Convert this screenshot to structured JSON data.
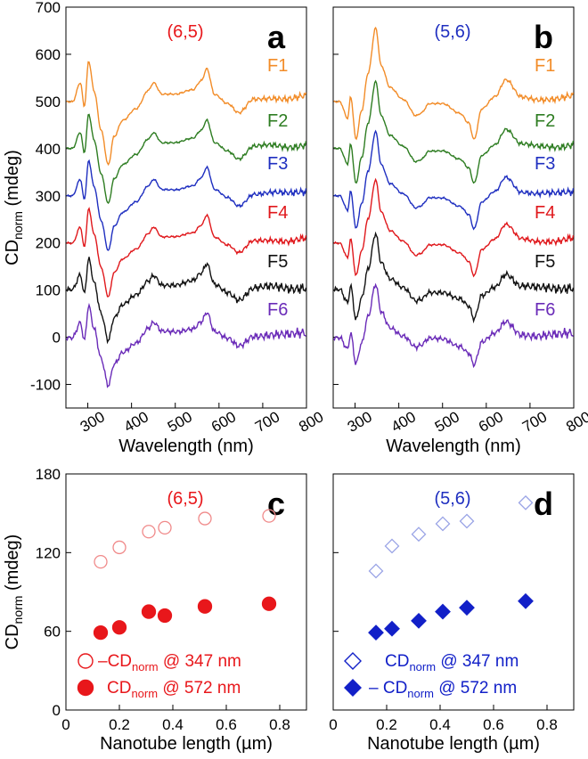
{
  "chart_data": [
    {
      "panel_letter": "a",
      "type": "line",
      "chirality": "(6,5)",
      "chirality_color": "#e8171b",
      "xlabel": "Wavelength (nm)",
      "ylabel_main": "CD",
      "ylabel_sub": "norm",
      "ylabel_unit": " (mdeg)",
      "xlim": [
        250,
        800
      ],
      "ylim": [
        -150,
        700
      ],
      "xticks": [
        300,
        400,
        500,
        600,
        700,
        800
      ],
      "yticks": [
        -100,
        0,
        100,
        200,
        300,
        400,
        500,
        600,
        700
      ],
      "series": [
        {
          "name": "F1",
          "color": "#f28c28",
          "offset": 500
        },
        {
          "name": "F2",
          "color": "#2e7d22",
          "offset": 400
        },
        {
          "name": "F3",
          "color": "#1f2fc0",
          "offset": 300
        },
        {
          "name": "F4",
          "color": "#e0181c",
          "offset": 200
        },
        {
          "name": "F5",
          "color": "#111111",
          "offset": 100
        },
        {
          "name": "F6",
          "color": "#6a2bb8",
          "offset": 0
        }
      ],
      "features": [
        [
          265,
          0
        ],
        [
          283,
          40
        ],
        [
          292,
          -10
        ],
        [
          302,
          85
        ],
        [
          315,
          20
        ],
        [
          330,
          -60
        ],
        [
          347,
          -135
        ],
        [
          360,
          -75
        ],
        [
          380,
          -40
        ],
        [
          410,
          -15
        ],
        [
          440,
          25
        ],
        [
          450,
          40
        ],
        [
          470,
          15
        ],
        [
          500,
          15
        ],
        [
          540,
          25
        ],
        [
          560,
          45
        ],
        [
          572,
          70
        ],
        [
          590,
          15
        ],
        [
          620,
          -5
        ],
        [
          645,
          -25
        ],
        [
          680,
          5
        ],
        [
          720,
          8
        ],
        [
          760,
          5
        ],
        [
          800,
          10
        ]
      ],
      "amplitude": [
        1.0,
        0.86,
        0.86,
        0.85,
        0.78,
        0.76
      ]
    },
    {
      "panel_letter": "b",
      "type": "line",
      "chirality": "(5,6)",
      "chirality_color": "#1f2fc0",
      "xlabel": "Wavelength (nm)",
      "xlim": [
        250,
        800
      ],
      "ylim": [
        -150,
        700
      ],
      "xticks": [
        300,
        400,
        500,
        600,
        700,
        800
      ],
      "series": [
        {
          "name": "F1",
          "color": "#f28c28",
          "offset": 500
        },
        {
          "name": "F2",
          "color": "#2e7d22",
          "offset": 400
        },
        {
          "name": "F3",
          "color": "#1f2fc0",
          "offset": 300
        },
        {
          "name": "F4",
          "color": "#e0181c",
          "offset": 200
        },
        {
          "name": "F5",
          "color": "#111111",
          "offset": 100
        },
        {
          "name": "F6",
          "color": "#6a2bb8",
          "offset": 0
        }
      ],
      "features": [
        [
          265,
          0
        ],
        [
          283,
          -35
        ],
        [
          290,
          10
        ],
        [
          302,
          -80
        ],
        [
          315,
          -20
        ],
        [
          330,
          60
        ],
        [
          347,
          155
        ],
        [
          360,
          75
        ],
        [
          380,
          30
        ],
        [
          410,
          5
        ],
        [
          440,
          -30
        ],
        [
          450,
          -25
        ],
        [
          470,
          -5
        ],
        [
          500,
          -5
        ],
        [
          540,
          -25
        ],
        [
          560,
          -45
        ],
        [
          572,
          -80
        ],
        [
          590,
          -15
        ],
        [
          620,
          10
        ],
        [
          645,
          45
        ],
        [
          680,
          10
        ],
        [
          720,
          5
        ],
        [
          760,
          5
        ],
        [
          800,
          10
        ]
      ],
      "amplitude": [
        1.0,
        0.92,
        0.88,
        0.86,
        0.78,
        0.72
      ]
    },
    {
      "panel_letter": "c",
      "type": "scatter",
      "chirality": "(6,5)",
      "chirality_color": "#e8171b",
      "xlabel": "Nanotube length (µm)",
      "ylabel_main": "CD",
      "ylabel_sub": "norm",
      "ylabel_unit": " (mdeg)",
      "xlim": [
        0,
        0.9
      ],
      "ylim": [
        0,
        180
      ],
      "xticks": [
        0,
        0.2,
        0.4,
        0.6,
        0.8
      ],
      "yticks": [
        0,
        60,
        120,
        180
      ],
      "series": [
        {
          "marker": "circle-open",
          "color": "#f08a8a",
          "x": [
            0.13,
            0.2,
            0.31,
            0.37,
            0.52,
            0.76
          ],
          "y": [
            113,
            124,
            136,
            139,
            146,
            148
          ]
        },
        {
          "marker": "circle-filled",
          "color": "#e8171b",
          "x": [
            0.13,
            0.2,
            0.31,
            0.37,
            0.52,
            0.76
          ],
          "y": [
            59,
            63,
            75,
            72,
            79,
            81
          ]
        }
      ],
      "legend": [
        {
          "prefix": "–CD",
          "sub": "norm",
          "suffix": " @ 347 nm",
          "color": "#e8171b"
        },
        {
          "prefix": "CD",
          "sub": "norm",
          "suffix": " @ 572 nm",
          "color": "#e8171b"
        }
      ]
    },
    {
      "panel_letter": "d",
      "type": "scatter",
      "chirality": "(5,6)",
      "chirality_color": "#1f2fc0",
      "xlabel": "Nanotube length (µm)",
      "xlim": [
        0,
        0.9
      ],
      "ylim": [
        0,
        180
      ],
      "xticks": [
        0,
        0.2,
        0.4,
        0.6,
        0.8
      ],
      "series": [
        {
          "marker": "diamond-open",
          "color": "#9aa4e6",
          "x": [
            0.16,
            0.22,
            0.32,
            0.41,
            0.5,
            0.72
          ],
          "y": [
            106,
            125,
            134,
            142,
            144,
            158
          ]
        },
        {
          "marker": "diamond-filled",
          "color": "#1220c8",
          "x": [
            0.16,
            0.22,
            0.32,
            0.41,
            0.5,
            0.72
          ],
          "y": [
            59,
            62,
            68,
            75,
            78,
            83
          ]
        }
      ],
      "legend": [
        {
          "prefix": "CD",
          "sub": "norm",
          "suffix": " @ 347 nm",
          "color": "#1220c8"
        },
        {
          "prefix": "– CD",
          "sub": "norm",
          "suffix": " @ 572 nm",
          "color": "#1220c8"
        }
      ]
    }
  ]
}
